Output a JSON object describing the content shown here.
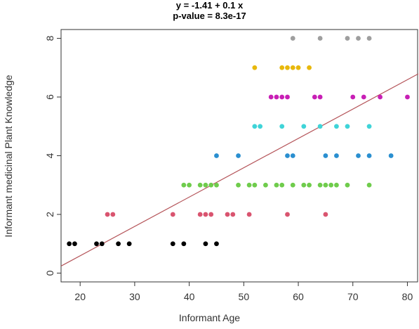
{
  "chart_data": {
    "type": "scatter",
    "title_lines": [
      "y = -1.41 + 0.1 x",
      "p-value = 8.3e-17"
    ],
    "xlabel": "Informant Age",
    "ylabel": "Informant medicinal Plant Knowledge",
    "xlim": [
      16.5,
      82
    ],
    "ylim": [
      -0.3,
      8.3
    ],
    "xticks": [
      20,
      30,
      40,
      50,
      60,
      70,
      80
    ],
    "yticks": [
      0,
      2,
      4,
      6,
      8
    ],
    "grid": false,
    "regression": {
      "intercept": -1.41,
      "slope": 0.1,
      "color": "#b5555a"
    },
    "series": [
      {
        "y": 1,
        "color": "#000000",
        "x": [
          18,
          19,
          23,
          24,
          27,
          29,
          37,
          39,
          43,
          45
        ]
      },
      {
        "y": 2,
        "color": "#d9546f",
        "x": [
          25,
          26,
          37,
          42,
          43,
          44,
          47,
          48,
          51,
          58,
          65
        ]
      },
      {
        "y": 3,
        "color": "#6fcc4c",
        "x": [
          39,
          40,
          42,
          43,
          44,
          45,
          49,
          51,
          52,
          54,
          56,
          57,
          59,
          61,
          62,
          64,
          65,
          66,
          67,
          69,
          73
        ]
      },
      {
        "y": 4,
        "color": "#2a8fd0",
        "x": [
          45,
          49,
          58,
          59,
          65,
          67,
          71,
          73,
          77
        ]
      },
      {
        "y": 5,
        "color": "#3fd4d8",
        "x": [
          52,
          53,
          57,
          61,
          64,
          67,
          69,
          73
        ]
      },
      {
        "y": 6,
        "color": "#c81fb5",
        "x": [
          55,
          56,
          57,
          58,
          63,
          64,
          70,
          72,
          75,
          80
        ]
      },
      {
        "y": 7,
        "color": "#e8b80c",
        "x": [
          52,
          57,
          58,
          59,
          60,
          62
        ]
      },
      {
        "y": 8,
        "color": "#9e9e9e",
        "x": [
          59,
          64,
          69,
          71,
          73
        ]
      }
    ]
  }
}
